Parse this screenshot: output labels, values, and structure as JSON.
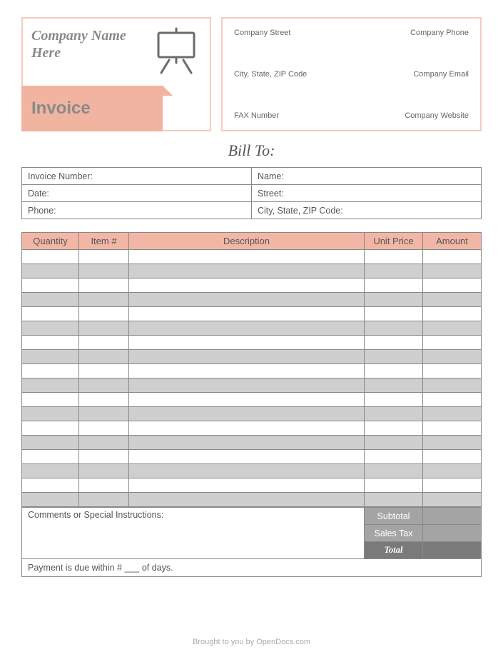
{
  "colors": {
    "peach_border": "#f6cbbd",
    "peach_fill": "#f0b4a0",
    "peach_header": "#f2b7a4",
    "gray_text": "#8a8a8a",
    "gray_stripe": "#cfcfcf",
    "gray_sub": "#a4a4a4",
    "gray_total": "#7a7a7a",
    "icon_stroke": "#6b6b6b"
  },
  "header": {
    "company_name": "Company Name Here",
    "invoice_label": "Invoice",
    "info": {
      "street": "Company Street",
      "phone": "Company Phone",
      "city": "City, State, ZIP Code",
      "email": "Company Email",
      "fax": "FAX Number",
      "website": "Company Website"
    }
  },
  "bill_to": "Bill To:",
  "meta": {
    "invoice_number": "Invoice Number:",
    "name": "Name:",
    "date": "Date:",
    "street": "Street:",
    "phone": "Phone:",
    "city": "City, State, ZIP Code:"
  },
  "columns": {
    "qty": "Quantity",
    "item": "Item #",
    "desc": "Description",
    "price": "Unit Price",
    "amount": "Amount"
  },
  "row_count": 18,
  "summary": {
    "comments": "Comments or Special Instructions:",
    "subtotal": "Subtotal",
    "tax": "Sales Tax",
    "total": "Total",
    "payment": "Payment is due within # ___ of days."
  },
  "footer": "Brought to you by OpenDocs.com"
}
